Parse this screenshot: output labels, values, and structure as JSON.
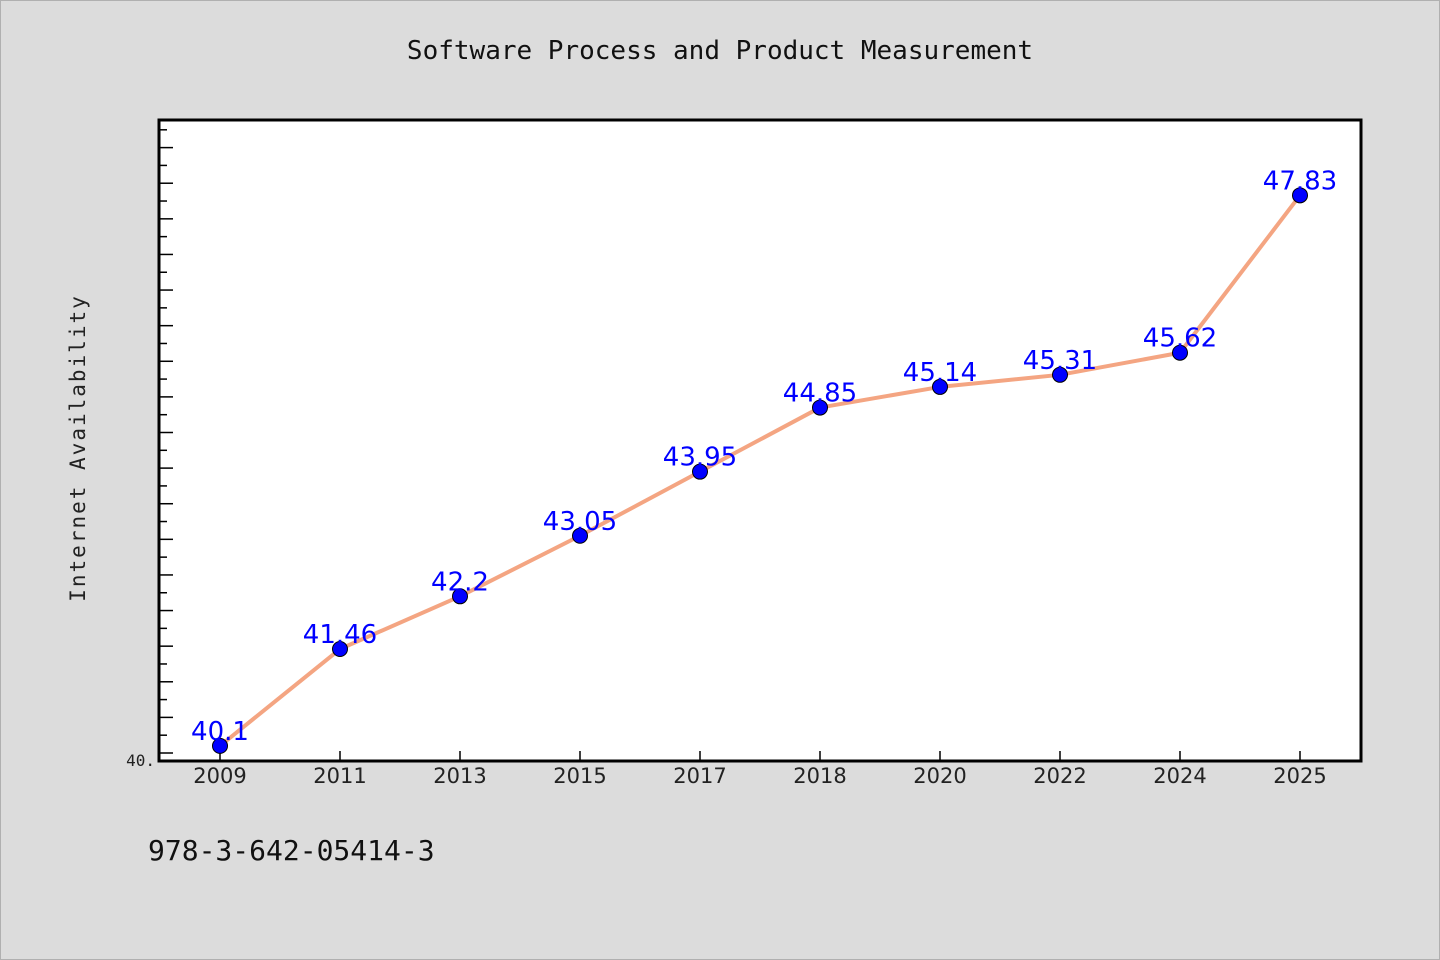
{
  "chart_data": {
    "type": "line",
    "title": "Software Process and Product Measurement",
    "xlabel": "",
    "ylabel": "Internet Availability",
    "categories": [
      "2009",
      "2011",
      "2013",
      "2015",
      "2017",
      "2018",
      "2020",
      "2022",
      "2024",
      "2025"
    ],
    "series": [
      {
        "values": [
          40.1,
          41.46,
          42.2,
          43.05,
          43.95,
          44.85,
          45.14,
          45.31,
          45.62,
          47.83
        ],
        "data_labels": [
          "40.1",
          "41.46",
          "42.2",
          "43.05",
          "43.95",
          "44.85",
          "45.14",
          "45.31",
          "45.62",
          "47.83"
        ],
        "line_color": "#f4a582",
        "marker_color": "#0000ff",
        "label_color": "#0000ff"
      }
    ],
    "ylim": [
      40.0,
      49.0
    ],
    "y_tick_labels": [
      "40."
    ],
    "grid": false,
    "legend": "none"
  },
  "footer": {
    "isbn": "978-3-642-05414-3"
  },
  "colors": {
    "background": "#dcdcdc",
    "plot_background": "#ffffff",
    "axis": "#000000"
  }
}
